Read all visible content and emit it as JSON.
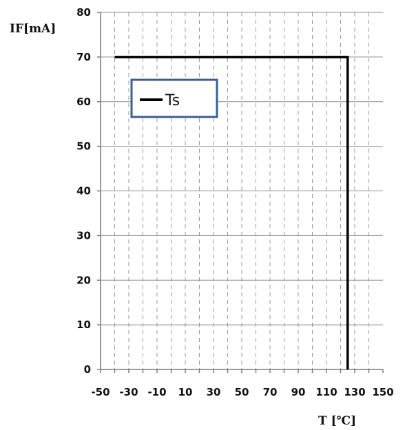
{
  "chart_data": {
    "type": "line",
    "title": "",
    "xlabel": "T [℃]",
    "ylabel": "IF[mA]",
    "xlim": [
      -50,
      150
    ],
    "ylim": [
      0,
      80
    ],
    "x_ticks": [
      -50,
      -30,
      -10,
      10,
      30,
      50,
      70,
      90,
      110,
      130,
      150
    ],
    "x_tick_labels": [
      "-50",
      "-30",
      "-10",
      "10",
      "30",
      "50",
      "70",
      "90",
      "110",
      "130",
      "150"
    ],
    "y_ticks": [
      0,
      10,
      20,
      30,
      40,
      50,
      60,
      70,
      80
    ],
    "y_tick_labels": [
      "0",
      "10",
      "20",
      "30",
      "40",
      "50",
      "60",
      "70",
      "80"
    ],
    "x_minor_grid_step": 10,
    "grid": {
      "horizontal": "solid",
      "vertical": "dashed"
    },
    "legend": {
      "placement": "top-left",
      "border_color": "#3a5f8f"
    },
    "series": [
      {
        "name": "Ts",
        "color": "#000000",
        "points": [
          {
            "x": -40,
            "y": 70
          },
          {
            "x": 125,
            "y": 70
          },
          {
            "x": 125,
            "y": 0
          }
        ]
      }
    ]
  }
}
